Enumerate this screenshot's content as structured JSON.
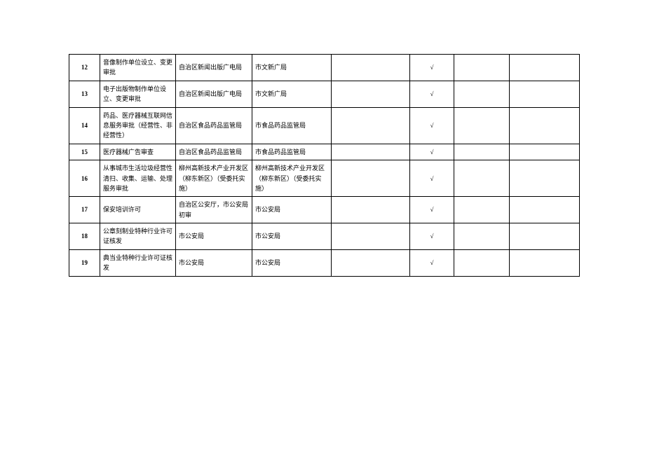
{
  "table": {
    "rows": [
      {
        "num": "12",
        "item": "音像制作单位设立、变更审批",
        "dept1": "自治区新闻出版广电局",
        "dept2": "市文新广局",
        "c5": "",
        "mark": "√",
        "c7": "",
        "c8": ""
      },
      {
        "num": "13",
        "item": "电子出版物制作单位设立、变更审批",
        "dept1": "自治区新闻出版广电局",
        "dept2": "市文新广局",
        "c5": "",
        "mark": "√",
        "c7": "",
        "c8": ""
      },
      {
        "num": "14",
        "item": "药品、医疗器械互联网信息服务审批（经营性、非经营性）",
        "dept1": "自治区食品药品监管局",
        "dept2": "市食品药品监管局",
        "c5": "",
        "mark": "√",
        "c7": "",
        "c8": ""
      },
      {
        "num": "15",
        "item": "医疗器械广告审查",
        "dept1": "自治区食品药品监管局",
        "dept2": "市食品药品监管局",
        "c5": "",
        "mark": "√",
        "c7": "",
        "c8": ""
      },
      {
        "num": "16",
        "item": "从事城市生活垃圾经营性清扫、收集、运输、处理服务审批",
        "dept1": "柳州高新技术产业开发区（柳东新区）（受委托实施）",
        "dept2": "柳州高新技术产业开发区（柳东新区）（受委托实施）",
        "c5": "",
        "mark": "√",
        "c7": "",
        "c8": ""
      },
      {
        "num": "17",
        "item": "保安培训许可",
        "dept1": "自治区公安厅，市公安局初审",
        "dept2": "市公安局",
        "c5": "",
        "mark": "√",
        "c7": "",
        "c8": ""
      },
      {
        "num": "18",
        "item": "公章刻制业特种行业许可证核发",
        "dept1": "市公安局",
        "dept2": "市公安局",
        "c5": "",
        "mark": "√",
        "c7": "",
        "c8": ""
      },
      {
        "num": "19",
        "item": "典当业特种行业许可证核发",
        "dept1": "市公安局",
        "dept2": "市公安局",
        "c5": "",
        "mark": "√",
        "c7": "",
        "c8": ""
      }
    ]
  },
  "style": {
    "font_size_pt": 7,
    "border_color": "#000000",
    "text_color": "#000000",
    "background_color": "#ffffff"
  }
}
